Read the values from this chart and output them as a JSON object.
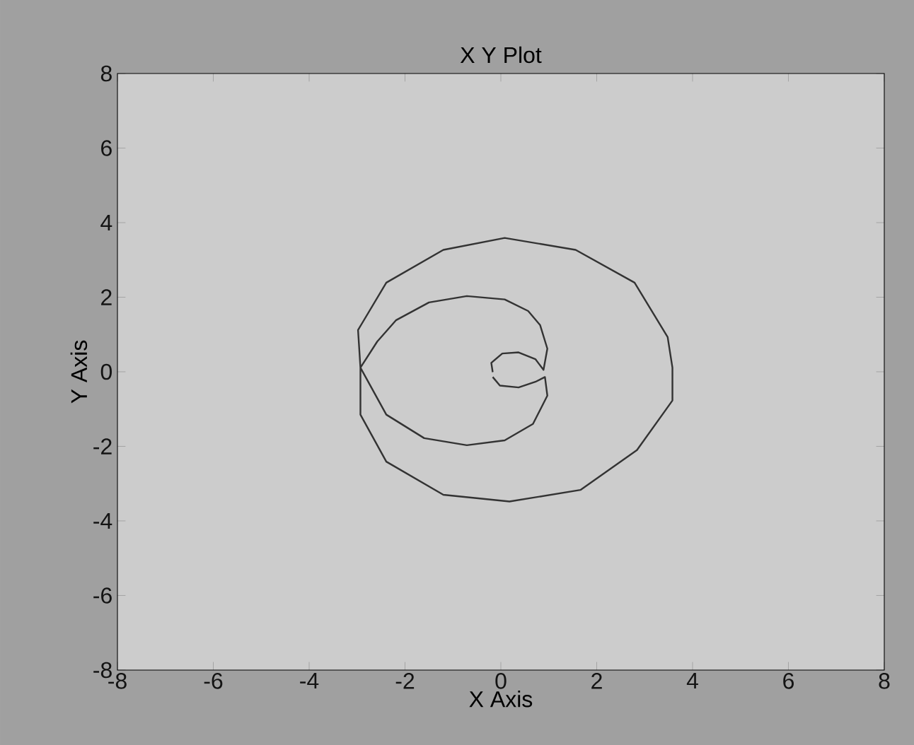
{
  "chart_data": {
    "type": "line",
    "title": "X Y Plot",
    "xlabel": "X Axis",
    "ylabel": "Y Axis",
    "series": [
      {
        "color": "#333333",
        "x": [
          -0.17,
          -0.2,
          0.03,
          0.37,
          0.72,
          0.89,
          0.97,
          0.82,
          0.57,
          0.08,
          -0.71,
          -1.5,
          -2.19,
          -2.58,
          -2.93,
          -2.93,
          -2.39,
          -1.2,
          0.18,
          1.66,
          2.84,
          3.58,
          3.58,
          3.48,
          2.79,
          1.56,
          0.08,
          -1.2,
          -2.39,
          -2.98,
          -2.93,
          -2.39,
          -1.6,
          -0.71,
          0.08,
          0.67,
          0.97,
          0.92,
          0.72,
          0.37,
          -0.02,
          -0.17
        ],
        "values": [
          -0.01,
          0.24,
          0.49,
          0.52,
          0.34,
          0.05,
          0.62,
          1.25,
          1.63,
          1.94,
          2.03,
          1.86,
          1.38,
          0.81,
          0.11,
          -1.15,
          -2.41,
          -3.3,
          -3.48,
          -3.17,
          -2.1,
          -0.77,
          0.11,
          0.93,
          2.39,
          3.27,
          3.59,
          3.27,
          2.39,
          1.12,
          0.11,
          -1.15,
          -1.78,
          -1.97,
          -1.84,
          -1.4,
          -0.64,
          -0.14,
          -0.27,
          -0.42,
          -0.37,
          -0.14
        ]
      }
    ],
    "xlim": [
      -8,
      8
    ],
    "ylim": [
      -8,
      8
    ],
    "xticks": [
      -8,
      -6,
      -4,
      -2,
      0,
      2,
      4,
      6,
      8
    ],
    "yticks": [
      -8,
      -6,
      -4,
      -2,
      0,
      2,
      4,
      6,
      8
    ]
  }
}
